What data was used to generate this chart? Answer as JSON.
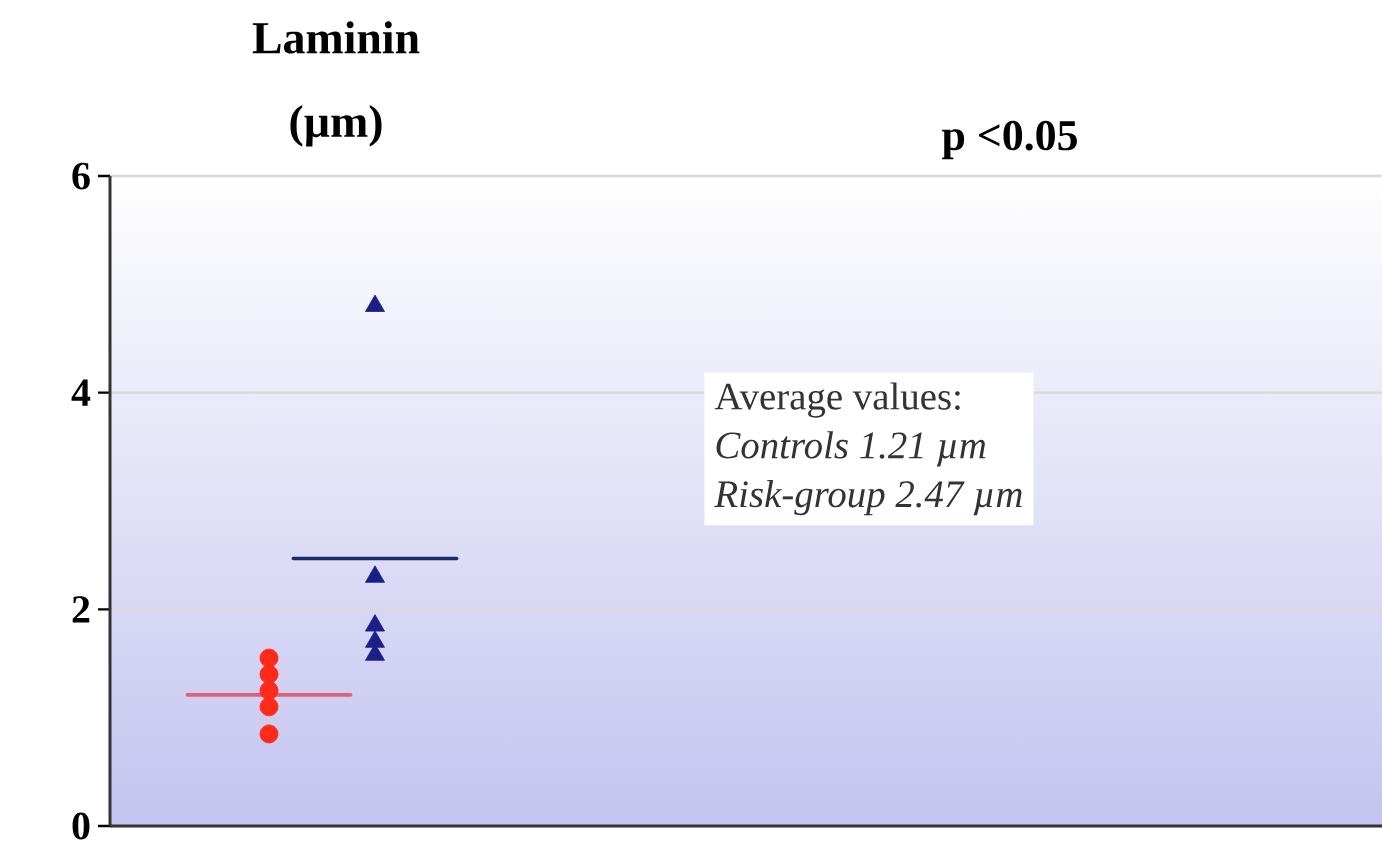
{
  "chart_data": {
    "type": "scatter",
    "title": "Laminin (µm)",
    "annotations": [
      "p <0.05",
      "Average values:",
      "Controls 1.21 µm",
      "Risk-group 2.47 µm"
    ],
    "categories": [
      null,
      null,
      null,
      null,
      null,
      null,
      null,
      null,
      null,
      null,
      null,
      null
    ],
    "ylim": [
      0,
      6
    ],
    "yticks": [
      0,
      2,
      4,
      6
    ],
    "grid": "y",
    "tick_labels": "y",
    "series": [
      {
        "color": "#ff2a1a",
        "marker": "circle",
        "values": [
          null,
          1.55,
          null,
          null,
          null,
          null,
          null,
          null,
          null,
          null,
          null,
          null
        ]
      },
      {
        "color": "#ff2a1a",
        "marker": "circle",
        "values": [
          null,
          1.4,
          null,
          null,
          null,
          null,
          null,
          null,
          null,
          null,
          null,
          null
        ]
      },
      {
        "color": "#ff2a1a",
        "marker": "circle",
        "values": [
          null,
          1.25,
          null,
          null,
          null,
          null,
          null,
          null,
          null,
          null,
          null,
          null
        ]
      },
      {
        "color": "#ff2a1a",
        "marker": "circle",
        "values": [
          null,
          1.1,
          null,
          null,
          null,
          null,
          null,
          null,
          null,
          null,
          null,
          null
        ]
      },
      {
        "color": "#ff2a1a",
        "marker": "circle",
        "values": [
          null,
          0.85,
          null,
          null,
          null,
          null,
          null,
          null,
          null,
          null,
          null,
          null
        ]
      },
      {
        "color": "#1a1f8a",
        "marker": "triangle",
        "values": [
          null,
          null,
          4.8,
          null,
          null,
          null,
          null,
          null,
          null,
          null,
          null,
          null
        ]
      },
      {
        "color": "#1a1f8a",
        "marker": "triangle",
        "values": [
          null,
          null,
          2.3,
          null,
          null,
          null,
          null,
          null,
          null,
          null,
          null,
          null
        ]
      },
      {
        "color": "#1a1f8a",
        "marker": "triangle",
        "values": [
          null,
          null,
          1.85,
          null,
          null,
          null,
          null,
          null,
          null,
          null,
          null,
          null
        ]
      },
      {
        "color": "#1a1f8a",
        "marker": "triangle",
        "values": [
          null,
          null,
          1.7,
          null,
          null,
          null,
          null,
          null,
          null,
          null,
          null,
          null
        ]
      },
      {
        "color": "#1a1f8a",
        "marker": "triangle",
        "values": [
          null,
          null,
          1.58,
          null,
          null,
          null,
          null,
          null,
          null,
          null,
          null,
          null
        ]
      }
    ],
    "ref_lines": [
      {
        "axis": "y",
        "value": 1.21,
        "color": "#e0607a"
      },
      {
        "axis": "y",
        "value": 2.47,
        "color": "#1a2a6e"
      }
    ]
  }
}
